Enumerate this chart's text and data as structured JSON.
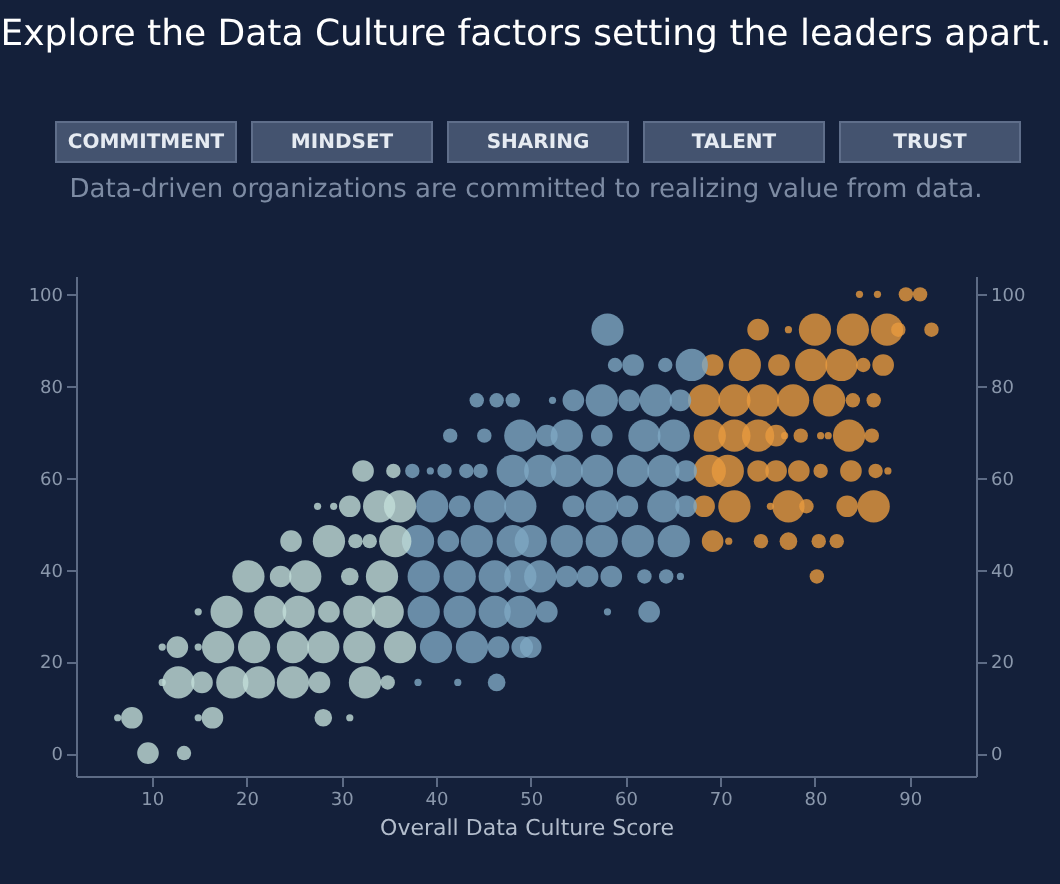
{
  "chart_data": {
    "type": "bubble",
    "title": "Explore the Data Culture factors setting the leaders apart.",
    "subtitle": "Data-driven organizations are committed to realizing value from data.",
    "xlabel": "Overall Data Culture Score",
    "annotations": [
      "COMMITMENT",
      "MINDSET",
      "SHARING",
      "TALENT",
      "TRUST"
    ],
    "series": [
      {
        "color": "#c2ddd8",
        "x": [
          9.6,
          13.4,
          6.4,
          7.9,
          14.9,
          16.4,
          28.1,
          30.9,
          11.1,
          12.8,
          15.3,
          18.5,
          21.3,
          24.9,
          27.7,
          32.5,
          34.9,
          11.1,
          12.7,
          14.9,
          17.0,
          20.8,
          24.9,
          28.1,
          31.9,
          36.2,
          14.9,
          17.9,
          22.5,
          25.5,
          28.7,
          31.9,
          34.9,
          20.2,
          23.6,
          26.2,
          30.9,
          34.3,
          24.7,
          28.7,
          31.5,
          33.0,
          35.7,
          27.5,
          29.2,
          30.9,
          34.0,
          36.2,
          32.3,
          35.5
        ],
        "values": [
          0,
          0,
          7.7,
          7.7,
          7.7,
          7.7,
          7.7,
          7.7,
          15.4,
          15.4,
          15.4,
          15.4,
          15.4,
          15.4,
          15.4,
          15.4,
          15.4,
          23.1,
          23.1,
          23.1,
          23.1,
          23.1,
          23.1,
          23.1,
          23.1,
          23.1,
          30.8,
          30.8,
          30.8,
          30.8,
          30.8,
          30.8,
          30.8,
          38.5,
          38.5,
          38.5,
          38.5,
          38.5,
          46.2,
          46.2,
          46.2,
          46.2,
          46.2,
          53.8,
          53.8,
          53.8,
          53.8,
          53.8,
          61.5,
          61.5
        ],
        "sizes": [
          0.45,
          0.2,
          0.05,
          0.45,
          0.05,
          0.45,
          0.3,
          0.05,
          0.05,
          1,
          0.45,
          1,
          1,
          1,
          0.45,
          1,
          0.2,
          0.05,
          0.45,
          0.05,
          1,
          1,
          1,
          1,
          1,
          1,
          0.05,
          1,
          1,
          1,
          0.45,
          1,
          1,
          1,
          0.45,
          1,
          0.3,
          1,
          0.45,
          1,
          0.2,
          0.2,
          1,
          0.05,
          0.05,
          0.45,
          1,
          1,
          0.45,
          0.2
        ]
      },
      {
        "color": "#7ea8c3",
        "x": [
          38.1,
          42.3,
          46.4,
          40.0,
          43.8,
          46.6,
          49.1,
          50.0,
          38.7,
          42.5,
          46.2,
          48.9,
          51.7,
          58.1,
          62.5,
          38.7,
          42.5,
          46.2,
          48.9,
          51.0,
          53.8,
          56.0,
          58.5,
          62.0,
          64.3,
          65.8,
          38.1,
          41.3,
          44.3,
          48.1,
          50.0,
          53.8,
          57.5,
          61.3,
          65.1,
          39.6,
          42.5,
          45.7,
          48.9,
          54.5,
          57.5,
          60.2,
          64.0,
          66.4,
          37.5,
          39.4,
          40.9,
          43.2,
          44.7,
          48.1,
          51.0,
          53.8,
          57.0,
          60.8,
          64.0,
          66.4,
          41.5,
          45.1,
          48.9,
          51.7,
          53.8,
          57.5,
          62.0,
          65.1,
          44.3,
          46.4,
          48.1,
          52.3,
          54.5,
          57.5,
          60.4,
          63.2,
          65.8,
          58.9,
          60.8,
          64.2,
          67.0,
          58.1
        ],
        "values": [
          15.4,
          15.4,
          15.4,
          23.1,
          23.1,
          23.1,
          23.1,
          23.1,
          30.8,
          30.8,
          30.8,
          30.8,
          30.8,
          30.8,
          30.8,
          38.5,
          38.5,
          38.5,
          38.5,
          38.5,
          38.5,
          38.5,
          38.5,
          38.5,
          38.5,
          38.5,
          46.2,
          46.2,
          46.2,
          46.2,
          46.2,
          46.2,
          46.2,
          46.2,
          46.2,
          53.8,
          53.8,
          53.8,
          53.8,
          53.8,
          53.8,
          53.8,
          53.8,
          53.8,
          61.5,
          61.5,
          61.5,
          61.5,
          61.5,
          61.5,
          61.5,
          61.5,
          61.5,
          61.5,
          61.5,
          61.5,
          69.2,
          69.2,
          69.2,
          69.2,
          69.2,
          69.2,
          69.2,
          69.2,
          76.9,
          76.9,
          76.9,
          76.9,
          76.9,
          76.9,
          76.9,
          76.9,
          76.9,
          84.6,
          84.6,
          84.6,
          84.6,
          92.3
        ],
        "sizes": [
          0.05,
          0.05,
          0.3,
          1,
          1,
          0.45,
          0.45,
          0.45,
          1,
          1,
          1,
          1,
          0.45,
          0.05,
          0.45,
          1,
          1,
          1,
          1,
          1,
          0.45,
          0.45,
          0.45,
          0.2,
          0.2,
          0.05,
          1,
          0.45,
          1,
          1,
          1,
          1,
          1,
          1,
          1,
          1,
          0.45,
          1,
          1,
          0.45,
          1,
          0.45,
          1,
          0.45,
          0.2,
          0.05,
          0.2,
          0.2,
          0.2,
          1,
          1,
          1,
          1,
          1,
          1,
          0.45,
          0.2,
          0.2,
          1,
          0.45,
          1,
          0.45,
          1,
          1,
          0.2,
          0.2,
          0.2,
          0.05,
          0.45,
          1,
          0.45,
          1,
          0.45,
          0.2,
          0.45,
          0.2,
          1,
          1
        ]
      },
      {
        "color": "#e79a3e",
        "x": [
          80.2,
          69.2,
          70.9,
          74.3,
          77.2,
          80.4,
          82.3,
          68.3,
          71.5,
          75.3,
          77.2,
          79.1,
          83.4,
          86.2,
          68.9,
          70.8,
          74.0,
          75.9,
          78.3,
          80.6,
          83.8,
          86.4,
          87.7,
          68.9,
          71.5,
          74.0,
          75.9,
          76.8,
          78.5,
          80.6,
          81.4,
          83.6,
          86.0,
          68.3,
          71.5,
          74.5,
          77.7,
          81.5,
          84.0,
          86.2,
          69.2,
          72.6,
          76.2,
          79.6,
          82.8,
          85.1,
          87.2,
          74.0,
          77.2,
          80.0,
          84.0,
          87.6,
          88.8,
          92.3,
          84.7,
          86.6,
          89.6,
          91.1
        ],
        "values": [
          38.5,
          46.2,
          46.2,
          46.2,
          46.2,
          46.2,
          46.2,
          53.8,
          53.8,
          53.8,
          53.8,
          53.8,
          53.8,
          53.8,
          61.5,
          61.5,
          61.5,
          61.5,
          61.5,
          61.5,
          61.5,
          61.5,
          61.5,
          69.2,
          69.2,
          69.2,
          69.2,
          69.2,
          69.2,
          69.2,
          69.2,
          69.2,
          69.2,
          76.9,
          76.9,
          76.9,
          76.9,
          76.9,
          76.9,
          76.9,
          84.6,
          84.6,
          84.6,
          84.6,
          84.6,
          84.6,
          84.6,
          92.3,
          92.3,
          92.3,
          92.3,
          92.3,
          92.3,
          92.3,
          100,
          100,
          100,
          100
        ],
        "sizes": [
          0.2,
          0.45,
          0.05,
          0.2,
          0.3,
          0.2,
          0.2,
          0.45,
          1,
          0.05,
          1,
          0.2,
          0.45,
          1,
          1,
          1,
          0.45,
          0.45,
          0.45,
          0.2,
          0.45,
          0.2,
          0.05,
          1,
          1,
          1,
          0.45,
          0.05,
          0.2,
          0.05,
          0.05,
          1,
          0.2,
          1,
          1,
          1,
          1,
          1,
          0.2,
          0.2,
          0.45,
          1,
          0.45,
          1,
          1,
          0.2,
          0.45,
          0.45,
          0.05,
          1,
          1,
          1,
          0.2,
          0.2,
          0.05,
          0.05,
          0.2,
          0.2
        ]
      }
    ],
    "xlim": [
      2,
      97
    ],
    "xticks": [
      10,
      20,
      30,
      40,
      50,
      60,
      70,
      80,
      90
    ],
    "ylim": [
      -5,
      104
    ],
    "yticks": [
      0,
      20,
      40,
      60,
      80,
      100
    ],
    "y2lim": [
      -5,
      104
    ],
    "y2ticks": [
      0,
      20,
      40,
      60,
      80,
      100
    ],
    "grid": false,
    "legend": false
  }
}
